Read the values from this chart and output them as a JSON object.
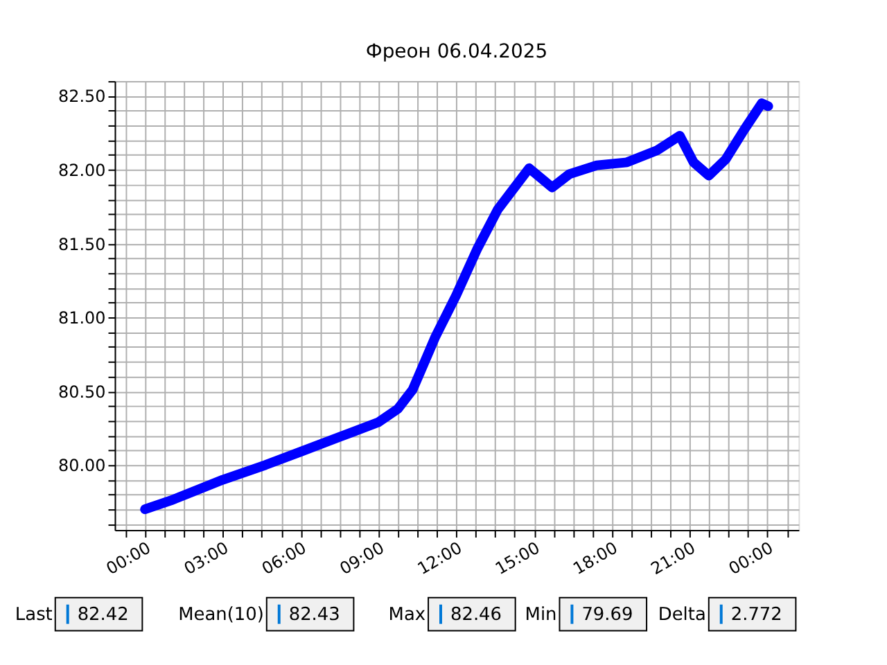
{
  "chart_data": {
    "type": "line",
    "title": "Фреон 06.04.2025",
    "x": [
      0,
      1.0,
      2.0,
      3.0,
      4.64,
      6.0,
      7.5,
      9.0,
      9.75,
      10.32,
      11.2,
      12.0,
      12.8,
      13.6,
      14.81,
      15.7,
      16.36,
      17.42,
      18.58,
      19.73,
      20.62,
      21.15,
      21.74,
      22.39,
      23.1,
      23.78,
      24.03
    ],
    "series": [
      {
        "color": "#0000ff",
        "values": [
          79.7,
          79.76,
          79.83,
          79.9,
          80.0,
          80.09,
          80.19,
          80.29,
          80.38,
          80.51,
          80.87,
          81.15,
          81.46,
          81.73,
          82.01,
          81.88,
          81.97,
          82.03,
          82.05,
          82.13,
          82.23,
          82.05,
          81.96,
          82.07,
          82.27,
          82.45,
          82.43
        ]
      }
    ],
    "xlim": [
      -1.17,
      25.2
    ],
    "ylim": [
      79.56,
      82.6
    ],
    "xticks": [
      {
        "value": -0.75,
        "label": null
      },
      {
        "value": 0,
        "label": "00:00"
      },
      {
        "value": 0.75,
        "label": null
      },
      {
        "value": 1.5,
        "label": null
      },
      {
        "value": 2.25,
        "label": null
      },
      {
        "value": 3,
        "label": "03:00"
      },
      {
        "value": 3.75,
        "label": null
      },
      {
        "value": 4.5,
        "label": null
      },
      {
        "value": 5.25,
        "label": null
      },
      {
        "value": 6,
        "label": "06:00"
      },
      {
        "value": 6.75,
        "label": null
      },
      {
        "value": 7.5,
        "label": null
      },
      {
        "value": 8.25,
        "label": null
      },
      {
        "value": 9,
        "label": "09:00"
      },
      {
        "value": 9.75,
        "label": null
      },
      {
        "value": 10.5,
        "label": null
      },
      {
        "value": 11.25,
        "label": null
      },
      {
        "value": 12,
        "label": "12:00"
      },
      {
        "value": 12.75,
        "label": null
      },
      {
        "value": 13.5,
        "label": null
      },
      {
        "value": 14.25,
        "label": null
      },
      {
        "value": 15,
        "label": "15:00"
      },
      {
        "value": 15.75,
        "label": null
      },
      {
        "value": 16.5,
        "label": null
      },
      {
        "value": 17.25,
        "label": null
      },
      {
        "value": 18,
        "label": "18:00"
      },
      {
        "value": 18.75,
        "label": null
      },
      {
        "value": 19.5,
        "label": null
      },
      {
        "value": 20.25,
        "label": null
      },
      {
        "value": 21,
        "label": "21:00"
      },
      {
        "value": 21.75,
        "label": null
      },
      {
        "value": 22.5,
        "label": null
      },
      {
        "value": 23.25,
        "label": null
      },
      {
        "value": 24,
        "label": "00:00"
      },
      {
        "value": 24.75,
        "label": null
      }
    ],
    "yticks": [
      {
        "value": 79.6,
        "label": null
      },
      {
        "value": 79.7,
        "label": null
      },
      {
        "value": 79.8,
        "label": null
      },
      {
        "value": 79.9,
        "label": null
      },
      {
        "value": 80,
        "label": "80.00"
      },
      {
        "value": 80.1,
        "label": null
      },
      {
        "value": 80.2,
        "label": null
      },
      {
        "value": 80.3,
        "label": null
      },
      {
        "value": 80.4,
        "label": null
      },
      {
        "value": 80.5,
        "label": "80.50"
      },
      {
        "value": 80.6,
        "label": null
      },
      {
        "value": 80.7,
        "label": null
      },
      {
        "value": 80.8,
        "label": null
      },
      {
        "value": 80.9,
        "label": null
      },
      {
        "value": 81,
        "label": "81.00"
      },
      {
        "value": 81.1,
        "label": null
      },
      {
        "value": 81.2,
        "label": null
      },
      {
        "value": 81.3,
        "label": null
      },
      {
        "value": 81.4,
        "label": null
      },
      {
        "value": 81.5,
        "label": "81.50"
      },
      {
        "value": 81.6,
        "label": null
      },
      {
        "value": 81.7,
        "label": null
      },
      {
        "value": 81.8,
        "label": null
      },
      {
        "value": 81.9,
        "label": null
      },
      {
        "value": 82,
        "label": "82.00"
      },
      {
        "value": 82.1,
        "label": null
      },
      {
        "value": 82.2,
        "label": null
      },
      {
        "value": 82.3,
        "label": null
      },
      {
        "value": 82.4,
        "label": null
      },
      {
        "value": 82.5,
        "label": "82.50"
      },
      {
        "value": 82.6,
        "label": null
      }
    ],
    "grid": true,
    "line_style": "solid",
    "annotations": [
      "Last",
      "82.42",
      "Mean(10)",
      "82.43",
      "Max",
      "82.46",
      "Min",
      "79.69",
      "Delta",
      "2.772"
    ]
  }
}
